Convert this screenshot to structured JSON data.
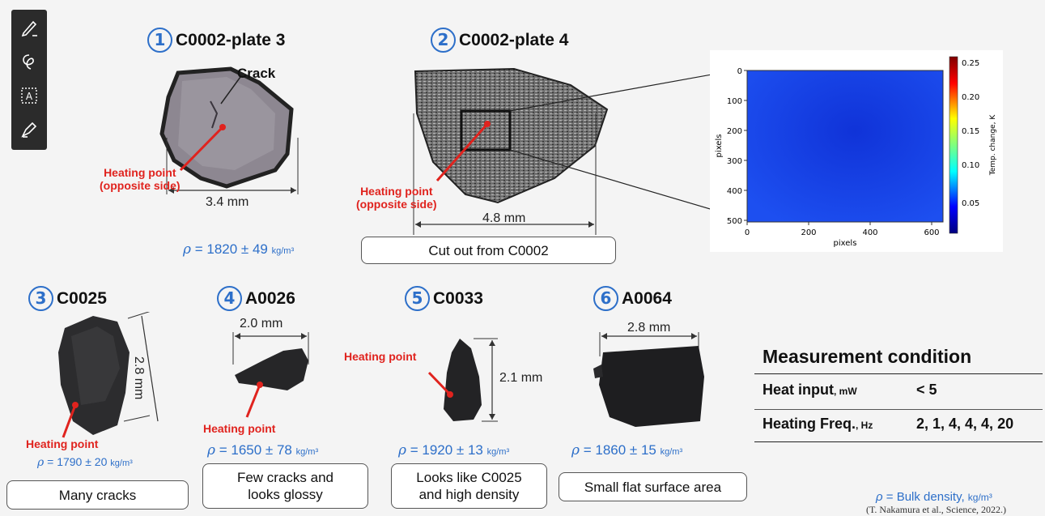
{
  "toolbar": {
    "tools": [
      {
        "icon": "pen-icon"
      },
      {
        "icon": "lasso-icon"
      },
      {
        "icon": "text-box-icon"
      },
      {
        "icon": "highlighter-icon"
      }
    ]
  },
  "samples": [
    {
      "num": "1",
      "name": "C0002-plate 3",
      "annotation": "Crack",
      "heating": "Heating point",
      "heating2": "(opposite side)",
      "size": "3.4 mm",
      "density_symbol": "ρ",
      "density_value": " = 1820 ± 49 ",
      "density_unit": "kg/m³"
    },
    {
      "num": "2",
      "name": "C0002-plate 4",
      "heating": "Heating point",
      "heating2": "(opposite side)",
      "size": "4.8 mm",
      "note": "Cut out from C0002"
    },
    {
      "num": "3",
      "name": "C0025",
      "heating": "Heating point",
      "size": "2.8 mm",
      "density_symbol": "ρ",
      "density_value": " = 1790 ± 20 ",
      "density_unit": "kg/m³",
      "note": "Many cracks"
    },
    {
      "num": "4",
      "name": "A0026",
      "heating": "Heating point",
      "size": "2.0 mm",
      "density_symbol": "ρ",
      "density_value": " = 1650 ± 78 ",
      "density_unit": "kg/m³",
      "note_line1": "Few cracks and",
      "note_line2": "looks glossy"
    },
    {
      "num": "5",
      "name": "C0033",
      "heating": "Heating point",
      "size": "2.1 mm",
      "density_symbol": "ρ",
      "density_value": " = 1920 ± 13 ",
      "density_unit": "kg/m³",
      "note_line1": "Looks like C0025",
      "note_line2": "and high density"
    },
    {
      "num": "6",
      "name": "A0064",
      "size": "2.8 mm",
      "density_symbol": "ρ",
      "density_value": " = 1860 ± 15 ",
      "density_unit": "kg/m³",
      "note": "Small flat surface area"
    }
  ],
  "heatmap": {
    "xlabel": "pixels",
    "ylabel": "pixels",
    "colorbar_label": "Temp. change, K",
    "xticks": [
      "0",
      "200",
      "400",
      "600"
    ],
    "yticks": [
      "0",
      "100",
      "200",
      "300",
      "400",
      "500"
    ],
    "cticks": [
      "0.25",
      "0.20",
      "0.15",
      "0.10",
      "0.05"
    ]
  },
  "measurement": {
    "title": "Measurement condition",
    "rows": [
      {
        "label": "Heat input",
        "unit": ", mW",
        "value": "< 5"
      },
      {
        "label": "Heating Freq.",
        "unit": ", Hz",
        "value": "2, 1, 4, 4, 4, 20"
      }
    ]
  },
  "footer": {
    "density_symbol": "ρ",
    "density_def": " = Bulk density, ",
    "density_unit": "kg/m³",
    "citation": "(T. Nakamura et al., Science, 2022.)"
  }
}
